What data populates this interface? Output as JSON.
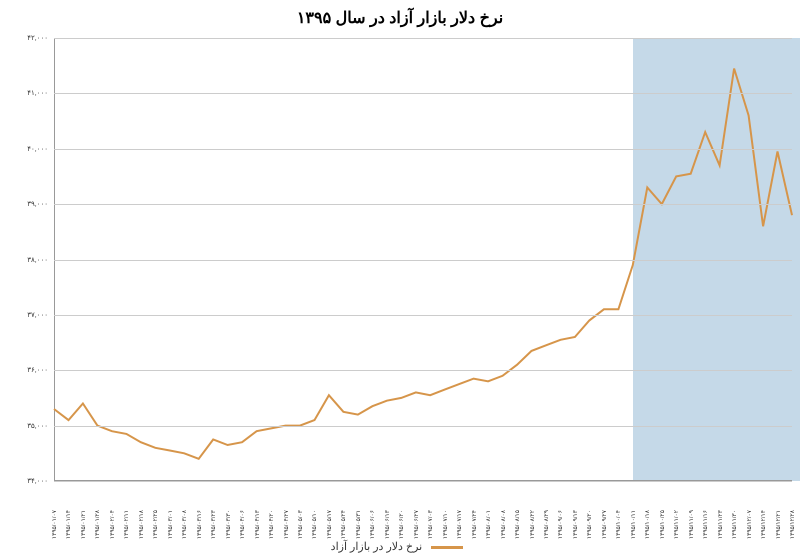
{
  "chart": {
    "type": "line",
    "title": "نرخ دلار بازار آزاد در سال ۱۳۹۵",
    "title_fontsize": 16,
    "background_color": "#ffffff",
    "grid_color": "#cccccc",
    "axis_color": "#999999",
    "line_color": "#d6954a",
    "line_width": 2,
    "highlight_color": "#c5d9e8",
    "highlight_start_index": 40,
    "highlight_end_index": 52,
    "ylim": [
      34000,
      42000
    ],
    "ytick_step": 1000,
    "ytick_labels": [
      "۳۴,۰۰۰",
      "۳۵,۰۰۰",
      "۳۶,۰۰۰",
      "۳۷,۰۰۰",
      "۳۸,۰۰۰",
      "۳۹,۰۰۰",
      "۴۰,۰۰۰",
      "۴۱,۰۰۰",
      "۴۲,۰۰۰"
    ],
    "x_labels": [
      "۱۳۹۵/۰۱/۰۷",
      "۱۳۹۵/۰۱/۱۴",
      "۱۳۹۵/۰۱/۲۱",
      "۱۳۹۵/۰۱/۲۸",
      "۱۳۹۵/۰۲/۰۴",
      "۱۳۹۵/۰۲/۱۱",
      "۱۳۹۵/۰۲/۱۸",
      "۱۳۹۵/۰۲/۲۵",
      "۱۳۹۵/۰۳/۰۱",
      "۱۳۹۵/۰۳/۰۸",
      "۱۳۹۵/۰۳/۱۶",
      "۱۳۹۵/۰۳/۲۳",
      "۱۳۹۵/۰۳/۳۰",
      "۱۳۹۵/۰۴/۰۶",
      "۱۳۹۵/۰۴/۱۳",
      "۱۳۹۵/۰۴/۲۰",
      "۱۳۹۵/۰۴/۲۷",
      "۱۳۹۵/۰۵/۰۳",
      "۱۳۹۵/۰۵/۱۰",
      "۱۳۹۵/۰۵/۱۷",
      "۱۳۹۵/۰۵/۲۴",
      "۱۳۹۵/۰۵/۳۱",
      "۱۳۹۵/۰۶/۰۶",
      "۱۳۹۵/۰۶/۱۳",
      "۱۳۹۵/۰۶/۲۰",
      "۱۳۹۵/۰۶/۲۷",
      "۱۳۹۵/۰۷/۰۳",
      "۱۳۹۵/۰۷/۱۰",
      "۱۳۹۵/۰۷/۱۷",
      "۱۳۹۵/۰۷/۲۴",
      "۱۳۹۵/۰۸/۰۱",
      "۱۳۹۵/۰۸/۰۸",
      "۱۳۹۵/۰۸/۱۵",
      "۱۳۹۵/۰۸/۲۲",
      "۱۳۹۵/۰۸/۲۹",
      "۱۳۹۵/۰۹/۰۶",
      "۱۳۹۵/۰۹/۱۳",
      "۱۳۹۵/۰۹/۲۰",
      "۱۳۹۵/۰۹/۲۷",
      "۱۳۹۵/۱۰/۰۴",
      "۱۳۹۵/۱۰/۱۱",
      "۱۳۹۵/۱۰/۱۸",
      "۱۳۹۵/۱۰/۲۵",
      "۱۳۹۵/۱۱/۰۲",
      "۱۳۹۵/۱۱/۰۹",
      "۱۳۹۵/۱۱/۱۶",
      "۱۳۹۵/۱۱/۲۳",
      "۱۳۹۵/۱۱/۳۰",
      "۱۳۹۵/۱۲/۰۷",
      "۱۳۹۵/۱۲/۱۴",
      "۱۳۹۵/۱۲/۲۱",
      "۱۳۹۵/۱۲/۲۸"
    ],
    "values": [
      35300,
      35100,
      35400,
      35000,
      34900,
      34850,
      34700,
      34600,
      34550,
      34500,
      34400,
      34750,
      34650,
      34700,
      34900,
      34950,
      35000,
      35000,
      35100,
      35550,
      35250,
      35200,
      35350,
      35450,
      35500,
      35600,
      35550,
      35650,
      35750,
      35850,
      35800,
      35900,
      36100,
      36350,
      36450,
      36550,
      36600,
      36900,
      37100,
      37100,
      37900,
      39300,
      39000,
      39500,
      39550,
      40300,
      39700,
      41450,
      40600,
      38600,
      39950,
      38800
    ],
    "legend_label": "نرخ دلار در بازار آزاد"
  }
}
